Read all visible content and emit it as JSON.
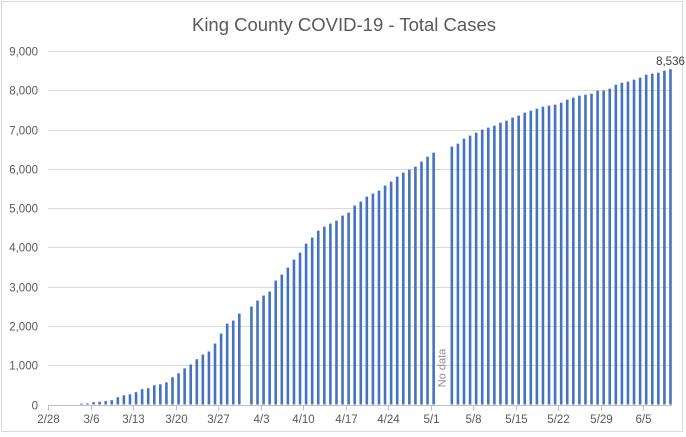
{
  "chart_data": {
    "type": "bar",
    "title": "King County COVID-19 - Total Cases",
    "xlabel": "",
    "ylabel": "",
    "ylim": [
      0,
      9000
    ],
    "yticks": [
      0,
      1000,
      2000,
      3000,
      4000,
      5000,
      6000,
      7000,
      8000,
      9000
    ],
    "ytick_labels": [
      "0",
      "1,000",
      "2,000",
      "3,000",
      "4,000",
      "5,000",
      "6,000",
      "7,000",
      "8,000",
      "9,000"
    ],
    "xlim": [
      "2020-02-28",
      "2020-06-10"
    ],
    "xtick_labels": [
      "2/28",
      "3/6",
      "3/13",
      "3/20",
      "3/27",
      "4/3",
      "4/10",
      "4/17",
      "4/24",
      "5/1",
      "5/8",
      "5/15",
      "5/22",
      "5/29",
      "6/5"
    ],
    "grid": "horizontal",
    "legend": "none",
    "bar_color": "#4472c4",
    "series": [
      {
        "name": "Total Cases",
        "x": [
          "3/4",
          "3/5",
          "3/6",
          "3/7",
          "3/8",
          "3/9",
          "3/10",
          "3/11",
          "3/12",
          "3/13",
          "3/14",
          "3/15",
          "3/16",
          "3/17",
          "3/18",
          "3/19",
          "3/20",
          "3/21",
          "3/22",
          "3/23",
          "3/24",
          "3/25",
          "3/26",
          "3/27",
          "3/28",
          "3/29",
          "3/30",
          "3/31",
          "4/1",
          "4/2",
          "4/3",
          "4/4",
          "4/5",
          "4/6",
          "4/7",
          "4/8",
          "4/9",
          "4/10",
          "4/11",
          "4/12",
          "4/13",
          "4/14",
          "4/15",
          "4/16",
          "4/17",
          "4/18",
          "4/19",
          "4/20",
          "4/21",
          "4/22",
          "4/23",
          "4/24",
          "4/25",
          "4/26",
          "4/27",
          "4/28",
          "4/29",
          "4/30",
          "5/1",
          "5/2",
          "5/3",
          "5/4",
          "5/5",
          "5/6",
          "5/7",
          "5/8",
          "5/9",
          "5/10",
          "5/11",
          "5/12",
          "5/13",
          "5/14",
          "5/15",
          "5/16",
          "5/17",
          "5/18",
          "5/19",
          "5/20",
          "5/21",
          "5/22",
          "5/23",
          "5/24",
          "5/25",
          "5/26",
          "5/27",
          "5/28",
          "5/29",
          "5/30",
          "5/31",
          "6/1",
          "6/2",
          "6/3",
          "6/4",
          "6/5",
          "6/6",
          "6/7",
          "6/8",
          "6/9"
        ],
        "values": [
          25,
          30,
          60,
          70,
          85,
          110,
          185,
          235,
          260,
          315,
          390,
          415,
          490,
          515,
          565,
          695,
          795,
          920,
          1018,
          1153,
          1272,
          1349,
          1552,
          1807,
          2061,
          2137,
          2316,
          null,
          2494,
          2646,
          2773,
          2875,
          3155,
          3308,
          3486,
          3690,
          3868,
          4097,
          4249,
          4427,
          4529,
          4606,
          4682,
          4809,
          4885,
          5064,
          5165,
          5293,
          5369,
          5445,
          5573,
          5674,
          5802,
          5903,
          5980,
          6056,
          6183,
          6310,
          6412,
          null,
          null,
          6565,
          6641,
          6768,
          6845,
          6921,
          6997,
          7048,
          7099,
          7176,
          7226,
          7303,
          7354,
          7430,
          7481,
          7532,
          7583,
          7608,
          7634,
          7684,
          7761,
          7812,
          7863,
          7888,
          7913,
          7990,
          7995,
          8041,
          8142,
          8193,
          8219,
          8270,
          8321,
          8397,
          8422,
          8448,
          8499,
          8536
        ]
      }
    ],
    "data_labels": [
      {
        "x": "6/9",
        "text": "8,536"
      }
    ],
    "annotations": [
      {
        "x": "5/2",
        "text": "No data",
        "rotation": "vertical"
      }
    ]
  }
}
